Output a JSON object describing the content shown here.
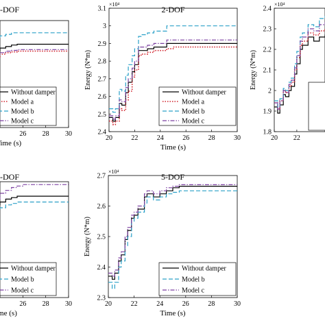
{
  "chart_data": [
    {
      "type": "line",
      "title": "-DOF",
      "xlabel": "Time (s)",
      "xlim": [
        20,
        30
      ],
      "visible_xlim": [
        24,
        30
      ],
      "xticks": [
        26,
        28,
        30
      ],
      "x": [
        20,
        20.5,
        21,
        21.5,
        22,
        22.5,
        23,
        23.5,
        24,
        24.5,
        25,
        25.5,
        26,
        27,
        28,
        29,
        30
      ],
      "series": [
        {
          "name": "Without damper",
          "color": "#000000",
          "dash": "solid",
          "values": [
            2.55,
            2.6,
            2.68,
            2.75,
            2.82,
            2.86,
            2.88,
            2.9,
            2.92,
            2.93,
            2.94,
            2.945,
            2.945,
            2.945,
            2.945,
            2.945,
            2.945
          ]
        },
        {
          "name": "Model a",
          "color": "#d0202a",
          "dash": "dot",
          "values": [
            2.5,
            2.55,
            2.62,
            2.7,
            2.77,
            2.81,
            2.84,
            2.86,
            2.88,
            2.89,
            2.895,
            2.9,
            2.9,
            2.9,
            2.9,
            2.9,
            2.9
          ]
        },
        {
          "name": "Model b",
          "color": "#2aa0c8",
          "dash": "dash",
          "values": [
            2.6,
            2.66,
            2.75,
            2.83,
            2.9,
            2.94,
            2.97,
            2.99,
            3.0,
            3.01,
            3.02,
            3.02,
            3.02,
            3.02,
            3.02,
            3.02,
            3.02
          ]
        },
        {
          "name": "Model c",
          "color": "#7b3fa0",
          "dash": "dashdot",
          "values": [
            2.52,
            2.57,
            2.64,
            2.72,
            2.79,
            2.83,
            2.86,
            2.88,
            2.89,
            2.9,
            2.905,
            2.91,
            2.91,
            2.91,
            2.91,
            2.91,
            2.91
          ]
        }
      ],
      "ylim": [
        2.4,
        3.1
      ],
      "legend_items": [
        "Without damper",
        "Model a",
        "Model b",
        "Model c"
      ],
      "legend_position": "bottom-left"
    },
    {
      "type": "line",
      "title": "2-DOF",
      "xlabel": "Time (s)",
      "ylabel": "Energy (N*m)",
      "exponent": "×10⁴",
      "xlim": [
        20,
        30
      ],
      "xticks": [
        20,
        22,
        24,
        26,
        28,
        30
      ],
      "ylim": [
        2.4,
        3.1
      ],
      "yticks": [
        2.4,
        2.5,
        2.6,
        2.7,
        2.8,
        2.9,
        3.0,
        3.1
      ],
      "ytick_labels": [
        "2.4",
        "2.5",
        "2.6",
        "2.7",
        "2.8",
        "2.9",
        "3",
        "3.1"
      ],
      "x": [
        20,
        20.3,
        20.5,
        20.8,
        21,
        21.3,
        21.5,
        21.8,
        22,
        22.3,
        22.5,
        23,
        23.5,
        24,
        24.5,
        25,
        26,
        27,
        28,
        29,
        30
      ],
      "series": [
        {
          "name": "Without damper",
          "color": "#000000",
          "dash": "solid",
          "values": [
            2.48,
            2.46,
            2.48,
            2.56,
            2.55,
            2.62,
            2.68,
            2.74,
            2.78,
            2.86,
            2.86,
            2.87,
            2.88,
            2.88,
            2.9,
            2.9,
            2.9,
            2.9,
            2.9,
            2.9,
            2.9
          ]
        },
        {
          "name": "Model a",
          "color": "#d0202a",
          "dash": "dot",
          "values": [
            2.46,
            2.44,
            2.46,
            2.53,
            2.52,
            2.58,
            2.63,
            2.71,
            2.75,
            2.83,
            2.84,
            2.85,
            2.86,
            2.86,
            2.87,
            2.88,
            2.88,
            2.88,
            2.88,
            2.88,
            2.88
          ]
        },
        {
          "name": "Model b",
          "color": "#2aa0c8",
          "dash": "dash",
          "values": [
            2.53,
            2.51,
            2.53,
            2.64,
            2.63,
            2.72,
            2.78,
            2.83,
            2.87,
            2.94,
            2.95,
            2.96,
            2.97,
            2.97,
            3.0,
            3.0,
            3.0,
            3.0,
            3.0,
            3.0,
            3.0
          ]
        },
        {
          "name": "Model c",
          "color": "#7b3fa0",
          "dash": "dashdot",
          "values": [
            2.49,
            2.47,
            2.49,
            2.58,
            2.57,
            2.65,
            2.7,
            2.76,
            2.8,
            2.88,
            2.88,
            2.89,
            2.9,
            2.9,
            2.92,
            2.92,
            2.92,
            2.92,
            2.92,
            2.92,
            2.92
          ]
        }
      ],
      "legend_items": [
        "Without damper",
        "Model a",
        "Model b",
        "Model c"
      ],
      "legend_position": "bottom-right"
    },
    {
      "type": "line",
      "title": "",
      "ylabel": "Energy (N*m)",
      "exponent": "×10⁴",
      "xlim": [
        20,
        30
      ],
      "visible_xlim": [
        20,
        24.5
      ],
      "xticks": [
        20,
        22
      ],
      "ylim": [
        1.8,
        2.4
      ],
      "yticks": [
        1.8,
        1.9,
        2.0,
        2.1,
        2.2,
        2.3,
        2.4
      ],
      "ytick_labels": [
        "1.8",
        "1.9",
        "2",
        "2.1",
        "2.2",
        "2.3",
        "2.4"
      ],
      "x": [
        20,
        20.3,
        20.5,
        20.8,
        21,
        21.3,
        21.5,
        21.8,
        22,
        22.3,
        22.5,
        23,
        23.5,
        24,
        24.5,
        25,
        26,
        27,
        28,
        29,
        30
      ],
      "series": [
        {
          "name": "Without damper",
          "color": "#000000",
          "dash": "solid",
          "values": [
            1.92,
            1.89,
            1.93,
            1.98,
            1.97,
            2.0,
            2.02,
            2.08,
            2.13,
            2.2,
            2.22,
            2.26,
            2.24,
            2.26,
            2.27,
            2.27,
            2.27,
            2.27,
            2.27,
            2.27,
            2.27
          ]
        },
        {
          "name": "Model a",
          "color": "#d0202a",
          "dash": "dot",
          "values": [
            1.94,
            1.91,
            1.95,
            2.0,
            1.99,
            2.02,
            2.04,
            2.1,
            2.16,
            2.22,
            2.24,
            2.28,
            2.27,
            2.29,
            2.3,
            2.3,
            2.3,
            2.3,
            2.3,
            2.3,
            2.3
          ]
        },
        {
          "name": "Model b",
          "color": "#2aa0c8",
          "dash": "dash",
          "values": [
            1.95,
            1.92,
            1.96,
            2.01,
            2.0,
            2.04,
            2.06,
            2.13,
            2.19,
            2.26,
            2.28,
            2.32,
            2.31,
            2.35,
            2.36,
            2.36,
            2.36,
            2.36,
            2.36,
            2.36,
            2.36
          ]
        },
        {
          "name": "Model c",
          "color": "#7b3fa0",
          "dash": "dashdot",
          "values": [
            1.94,
            1.91,
            1.95,
            2.0,
            1.99,
            2.03,
            2.05,
            2.11,
            2.17,
            2.24,
            2.26,
            2.3,
            2.29,
            2.32,
            2.33,
            2.33,
            2.33,
            2.33,
            2.33,
            2.33,
            2.33
          ]
        }
      ],
      "legend_position": "middle-right"
    },
    {
      "type": "line",
      "title": "-DOF",
      "xlabel": "ime (s)",
      "xlim": [
        20,
        30
      ],
      "visible_xlim": [
        24,
        30
      ],
      "xticks": [
        26,
        28,
        30
      ],
      "x": [
        20,
        21,
        22,
        23,
        24,
        24.5,
        25,
        25.5,
        26,
        27,
        28,
        29,
        30
      ],
      "series": [
        {
          "name": "Without damper",
          "color": "#000000",
          "dash": "solid",
          "values": [
            2.4,
            2.5,
            2.58,
            2.62,
            2.63,
            2.64,
            2.645,
            2.65,
            2.65,
            2.65,
            2.65,
            2.65,
            2.65
          ]
        },
        {
          "name": "Model b",
          "color": "#2aa0c8",
          "dash": "dash",
          "values": [
            2.38,
            2.47,
            2.55,
            2.6,
            2.61,
            2.62,
            2.625,
            2.63,
            2.63,
            2.63,
            2.63,
            2.63,
            2.63
          ]
        },
        {
          "name": "Model c",
          "color": "#7b3fa0",
          "dash": "dashdot",
          "values": [
            2.41,
            2.52,
            2.6,
            2.64,
            2.66,
            2.67,
            2.68,
            2.685,
            2.69,
            2.69,
            2.69,
            2.69,
            2.69
          ]
        }
      ],
      "ylim": [
        2.3,
        2.7
      ],
      "legend_items": [
        "Without damper",
        "Model b",
        "Model c"
      ],
      "legend_position": "bottom-left"
    },
    {
      "type": "line",
      "title": "5-DOF",
      "xlabel": "Time (s)",
      "ylabel": "Energy (N*m)",
      "exponent": "×10⁴",
      "xlim": [
        20,
        30
      ],
      "xticks": [
        20,
        22,
        24,
        26,
        28,
        30
      ],
      "ylim": [
        2.3,
        2.7
      ],
      "yticks": [
        2.3,
        2.4,
        2.5,
        2.6,
        2.7
      ],
      "ytick_labels": [
        "2.3",
        "2.4",
        "2.5",
        "2.6",
        "2.7"
      ],
      "x": [
        20,
        20.3,
        20.5,
        20.8,
        21,
        21.3,
        21.5,
        21.8,
        22,
        22.3,
        22.5,
        22.8,
        23,
        23.5,
        24,
        24.5,
        25,
        25.5,
        26,
        27,
        28,
        29,
        30
      ],
      "series": [
        {
          "name": "Without damper",
          "color": "#000000",
          "dash": "solid",
          "values": [
            2.37,
            2.36,
            2.38,
            2.42,
            2.44,
            2.49,
            2.52,
            2.56,
            2.57,
            2.59,
            2.59,
            2.63,
            2.64,
            2.63,
            2.64,
            2.65,
            2.66,
            2.665,
            2.665,
            2.665,
            2.665,
            2.665,
            2.665
          ]
        },
        {
          "name": "Model b",
          "color": "#2aa0c8",
          "dash": "dash",
          "values": [
            2.35,
            2.33,
            2.35,
            2.4,
            2.42,
            2.47,
            2.5,
            2.55,
            2.56,
            2.58,
            2.58,
            2.61,
            2.63,
            2.62,
            2.63,
            2.64,
            2.645,
            2.65,
            2.65,
            2.65,
            2.65,
            2.65,
            2.65
          ]
        },
        {
          "name": "Model c",
          "color": "#7b3fa0",
          "dash": "dashdot",
          "values": [
            2.38,
            2.37,
            2.39,
            2.43,
            2.45,
            2.5,
            2.53,
            2.57,
            2.58,
            2.6,
            2.6,
            2.64,
            2.65,
            2.64,
            2.65,
            2.66,
            2.665,
            2.67,
            2.67,
            2.67,
            2.67,
            2.67,
            2.67
          ]
        }
      ],
      "legend_items": [
        "Without damper",
        "Model b",
        "Model c"
      ],
      "legend_position": "bottom-right"
    }
  ]
}
